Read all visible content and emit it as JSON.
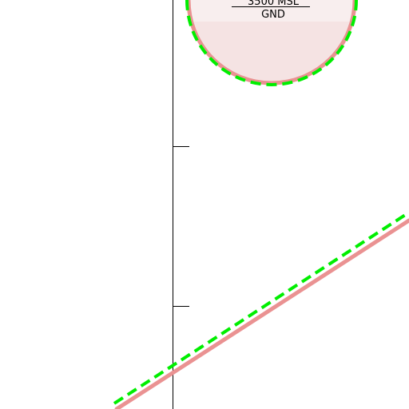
{
  "airspace_circle": {
    "ceiling_label": "3500 MSL",
    "floor_label": "GND",
    "fill_color": "#f5e3e3",
    "border_color": "#ea9292",
    "highlight_color": "#00ee00"
  },
  "boundary_line": {
    "border_color": "#ea9292",
    "highlight_color": "#00ee00"
  },
  "meridian_line": {
    "color": "#000000"
  }
}
